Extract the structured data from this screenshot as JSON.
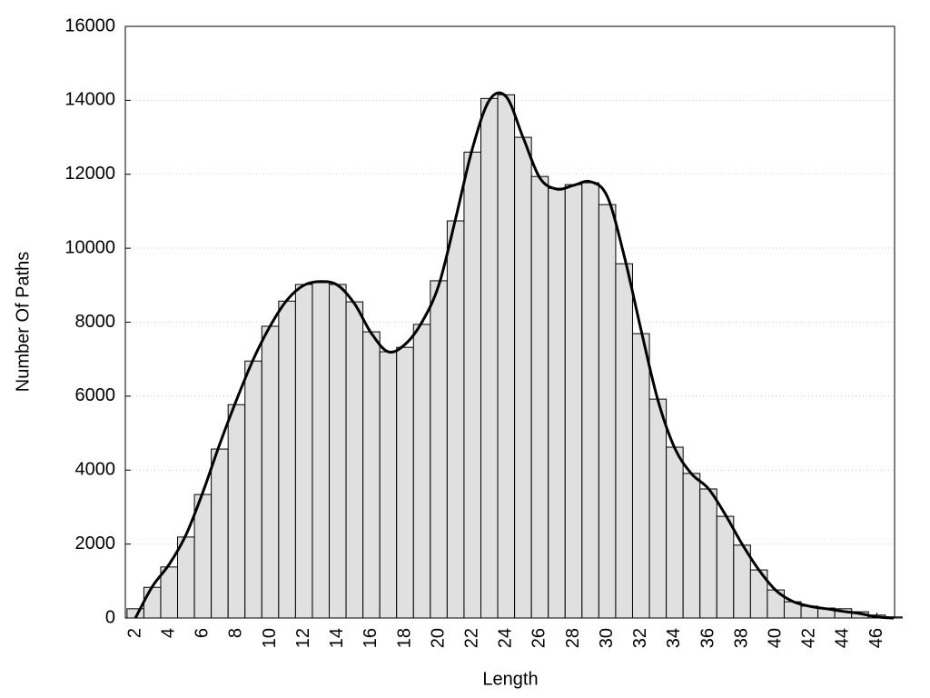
{
  "chart_data": {
    "type": "bar",
    "x_label": "Length",
    "y_label": "Number Of Paths",
    "x": [
      2,
      3,
      4,
      5,
      6,
      7,
      8,
      9,
      10,
      11,
      12,
      13,
      14,
      15,
      16,
      17,
      18,
      19,
      20,
      21,
      22,
      23,
      24,
      25,
      26,
      27,
      28,
      29,
      30,
      31,
      32,
      33,
      34,
      35,
      36,
      37,
      38,
      39,
      40,
      41,
      42,
      43,
      44,
      45,
      46,
      47
    ],
    "series": [
      {
        "type": "bar",
        "color": "#e0e0e0",
        "values": [
          250,
          830,
          1380,
          2190,
          3340,
          4570,
          5770,
          6950,
          7890,
          8570,
          9020,
          9070,
          9020,
          8550,
          7740,
          7200,
          7320,
          7940,
          9120,
          10740,
          12600,
          14050,
          14150,
          13000,
          11940,
          11620,
          11720,
          11770,
          11180,
          9580,
          7690,
          5920,
          4620,
          3910,
          3490,
          2750,
          1970,
          1300,
          760,
          440,
          320,
          270,
          250,
          170,
          80,
          30
        ]
      },
      {
        "type": "line",
        "color": "#000000",
        "values": [
          0,
          850,
          1450,
          2250,
          3400,
          4700,
          5900,
          7000,
          7900,
          8600,
          9000,
          9100,
          9000,
          8500,
          7700,
          7200,
          7400,
          8000,
          9000,
          10800,
          12700,
          14000,
          14100,
          13000,
          11900,
          11600,
          11700,
          11800,
          11400,
          9800,
          7800,
          5900,
          4600,
          3900,
          3500,
          2800,
          2000,
          1300,
          750,
          450,
          320,
          250,
          180,
          120,
          30,
          0
        ]
      }
    ],
    "xlim": [
      1.4,
      47.05
    ],
    "ylim": [
      0,
      16000
    ],
    "xticks": [
      2,
      4,
      6,
      8,
      10,
      12,
      14,
      16,
      18,
      20,
      22,
      24,
      26,
      28,
      30,
      32,
      34,
      36,
      38,
      40,
      42,
      44,
      46
    ],
    "yticks": [
      0,
      2000,
      4000,
      6000,
      8000,
      10000,
      12000,
      14000,
      16000
    ],
    "grid": true
  }
}
